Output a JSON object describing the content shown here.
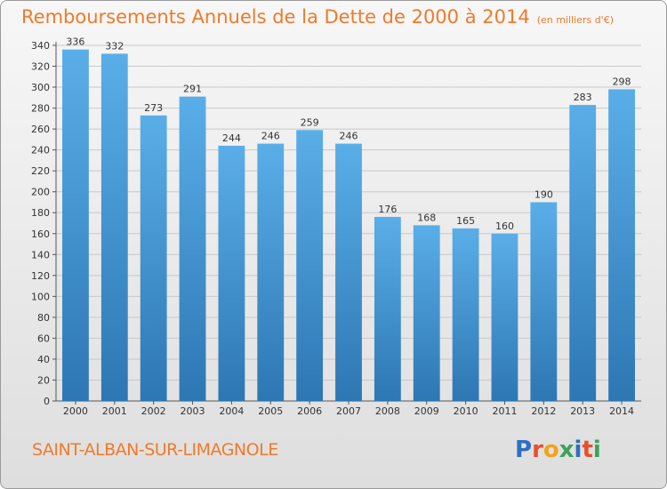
{
  "title": "Remboursements Annuels de la Dette de 2000 à 2014",
  "unit_note": "(en milliers d'€)",
  "commune": "SAINT-ALBAN-SUR-LIMAGNOLE",
  "logo": {
    "text": "Proxiti",
    "letters": [
      {
        "ch": "P",
        "color": "#2e6fc0"
      },
      {
        "ch": "r",
        "color": "#e94f2a"
      },
      {
        "ch": "o",
        "color": "#f2a21b"
      },
      {
        "ch": "x",
        "color": "#3aa35b"
      },
      {
        "ch": "i",
        "color": "#2e6fc0"
      },
      {
        "ch": "t",
        "color": "#e94f2a"
      },
      {
        "ch": "i",
        "color": "#3aa35b"
      }
    ]
  },
  "colors": {
    "accent": "#f07a2a",
    "bar_top": "#5aaee8",
    "bar_bottom": "#2d77b3"
  },
  "chart_data": {
    "type": "bar",
    "title": "Remboursements Annuels de la Dette de 2000 à 2014",
    "categories": [
      "2000",
      "2001",
      "2002",
      "2003",
      "2004",
      "2005",
      "2006",
      "2007",
      "2008",
      "2009",
      "2010",
      "2011",
      "2012",
      "2013",
      "2014"
    ],
    "values": [
      336,
      332,
      273,
      291,
      244,
      246,
      259,
      246,
      176,
      168,
      165,
      160,
      190,
      283,
      298
    ],
    "ylim": [
      0,
      340
    ],
    "yticks": [
      0,
      20,
      40,
      60,
      80,
      100,
      120,
      140,
      160,
      180,
      200,
      220,
      240,
      260,
      280,
      300,
      320,
      340
    ],
    "grid": true,
    "xlabel": "",
    "ylabel": ""
  }
}
